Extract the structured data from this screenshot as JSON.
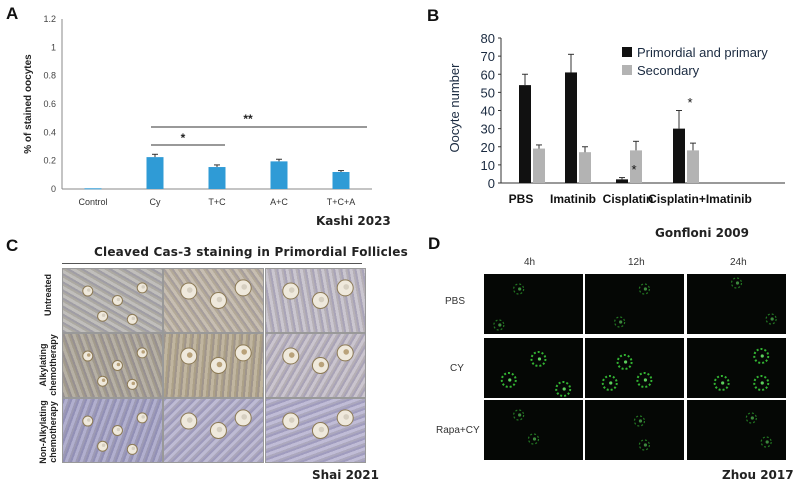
{
  "panels": {
    "a": {
      "letter": "A",
      "credit": "Kashi 2023",
      "sig_long": "**",
      "sig_short": "*"
    },
    "b": {
      "letter": "B",
      "credit": "Gonfloni 2009",
      "star_cisplatin": "*",
      "star_combo": "*"
    },
    "c": {
      "letter": "C",
      "title": "Cleaved Cas-3 staining in Primordial Follicles",
      "credit": "Shai 2021",
      "rows": [
        "Untreated",
        "Alkylating chemotherapy",
        "Non-Alkylating chemotherapy"
      ]
    },
    "d": {
      "letter": "D",
      "credit": "Zhou 2017",
      "columns": [
        "4h",
        "12h",
        "24h"
      ],
      "rows": [
        "PBS",
        "CY",
        "Rapa+CY"
      ]
    }
  },
  "chart_data": [
    {
      "type": "bar",
      "ylabel": "% of stained oocytes",
      "categories": [
        "Control",
        "Cy",
        "T+C",
        "A+C",
        "T+C+A"
      ],
      "values": [
        0.005,
        0.225,
        0.155,
        0.195,
        0.12
      ],
      "errors": [
        0.0,
        0.02,
        0.015,
        0.015,
        0.01
      ],
      "ylim": [
        0,
        1.2
      ],
      "yticks": [
        "0",
        "0.2",
        "0.4",
        "0.6",
        "0.8",
        "1",
        "1.2"
      ],
      "color": "#2f9bd6"
    },
    {
      "type": "bar",
      "ylabel": "Oocyte number",
      "categories": [
        "PBS",
        "Imatinib",
        "Cisplatin",
        "Cisplatin+Imatinib"
      ],
      "series": [
        {
          "name": "Primordial and primary",
          "values": [
            54,
            61,
            2,
            30
          ],
          "errors": [
            6,
            10,
            1,
            10
          ],
          "color": "#111111"
        },
        {
          "name": "Secondary",
          "values": [
            19,
            17,
            18,
            18
          ],
          "errors": [
            2,
            3,
            5,
            4
          ],
          "color": "#b3b3b3"
        }
      ],
      "ylim": [
        0,
        80
      ],
      "yticks": [
        "0",
        "10",
        "20",
        "30",
        "40",
        "50",
        "60",
        "70",
        "80"
      ]
    }
  ]
}
